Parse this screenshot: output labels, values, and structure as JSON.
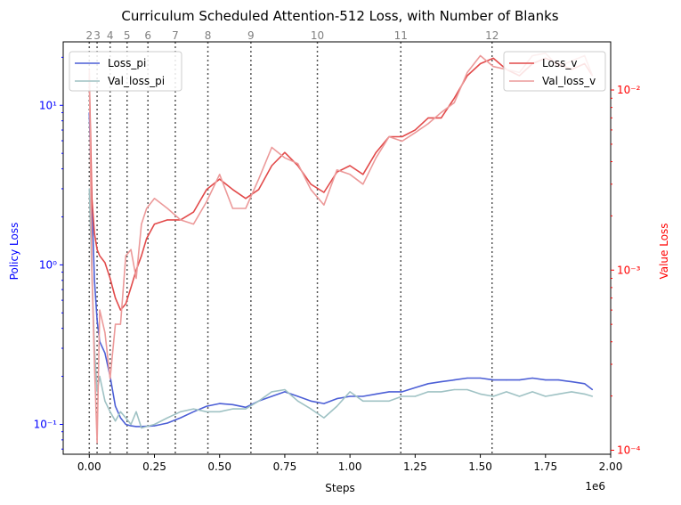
{
  "chart_data": {
    "type": "line",
    "title": "Curriculum Scheduled Attention-512 Loss, with Number of Blanks",
    "xlabel": "Steps",
    "x_offset_label": "1e6",
    "ylabel_left": "Policy Loss",
    "ylabel_right": "Value Loss",
    "xlim": [
      -0.1,
      2.0
    ],
    "ylim_left": [
      0.065,
      25
    ],
    "ylim_right": [
      9.5e-05,
      0.0185
    ],
    "yscale_left": "log",
    "yscale_right": "log",
    "x_ticks": [
      0.0,
      0.25,
      0.5,
      0.75,
      1.0,
      1.25,
      1.5,
      1.75,
      2.0
    ],
    "x_tick_labels": [
      "0.00",
      "0.25",
      "0.50",
      "0.75",
      "1.00",
      "1.25",
      "1.50",
      "1.75",
      "2.00"
    ],
    "left_ticks": [
      0.1,
      1,
      10
    ],
    "left_tick_labels": [
      "10⁻¹",
      "10⁰",
      "10¹"
    ],
    "right_ticks": [
      0.0001,
      0.001,
      0.01
    ],
    "right_tick_labels": [
      "10⁻⁴",
      "10⁻³",
      "10⁻²"
    ],
    "legend_left_position": "top-left",
    "legend_right_position": "top-right",
    "colors": {
      "left_axis": "#0000ff",
      "right_axis": "#ff0000",
      "loss_pi": "#4c5fd6",
      "val_loss_pi": "#9fc2c4",
      "loss_v": "#e24a4a",
      "val_loss_v": "#ec9a9a",
      "blank_lines": "#555555",
      "blank_labels": "#808080"
    },
    "blanks": [
      {
        "label": "2",
        "x": 0.0
      },
      {
        "label": "3",
        "x": 0.03
      },
      {
        "label": "4",
        "x": 0.08
      },
      {
        "label": "5",
        "x": 0.145
      },
      {
        "label": "6",
        "x": 0.225
      },
      {
        "label": "7",
        "x": 0.33
      },
      {
        "label": "8",
        "x": 0.455
      },
      {
        "label": "9",
        "x": 0.62
      },
      {
        "label": "10",
        "x": 0.875
      },
      {
        "label": "11",
        "x": 1.195
      },
      {
        "label": "12",
        "x": 1.545
      }
    ],
    "series_left": [
      {
        "name": "Loss_pi",
        "color": "#4c5fd6",
        "x": [
          0.0,
          0.01,
          0.02,
          0.03,
          0.04,
          0.06,
          0.08,
          0.1,
          0.12,
          0.14,
          0.16,
          0.18,
          0.2,
          0.25,
          0.3,
          0.35,
          0.4,
          0.45,
          0.5,
          0.55,
          0.6,
          0.65,
          0.7,
          0.75,
          0.8,
          0.85,
          0.9,
          0.95,
          1.0,
          1.05,
          1.1,
          1.15,
          1.2,
          1.25,
          1.3,
          1.35,
          1.4,
          1.45,
          1.5,
          1.55,
          1.6,
          1.65,
          1.7,
          1.75,
          1.8,
          1.85,
          1.9,
          1.93
        ],
        "y": [
          9.0,
          2.5,
          0.8,
          0.45,
          0.33,
          0.28,
          0.2,
          0.13,
          0.11,
          0.1,
          0.098,
          0.097,
          0.097,
          0.098,
          0.102,
          0.11,
          0.12,
          0.13,
          0.135,
          0.133,
          0.128,
          0.14,
          0.15,
          0.16,
          0.15,
          0.14,
          0.135,
          0.145,
          0.15,
          0.15,
          0.155,
          0.16,
          0.16,
          0.17,
          0.18,
          0.185,
          0.19,
          0.195,
          0.195,
          0.19,
          0.19,
          0.19,
          0.195,
          0.19,
          0.19,
          0.185,
          0.18,
          0.165
        ]
      },
      {
        "name": "Val_loss_pi",
        "color": "#9fc2c4",
        "x": [
          0.0,
          0.01,
          0.02,
          0.03,
          0.04,
          0.06,
          0.08,
          0.1,
          0.12,
          0.14,
          0.16,
          0.18,
          0.2,
          0.25,
          0.3,
          0.35,
          0.4,
          0.45,
          0.5,
          0.55,
          0.6,
          0.65,
          0.7,
          0.75,
          0.8,
          0.85,
          0.9,
          0.95,
          1.0,
          1.05,
          1.1,
          1.15,
          1.2,
          1.25,
          1.3,
          1.35,
          1.4,
          1.45,
          1.5,
          1.55,
          1.6,
          1.65,
          1.7,
          1.75,
          1.8,
          1.85,
          1.9,
          1.93
        ],
        "y": [
          3.0,
          0.9,
          0.3,
          0.16,
          0.2,
          0.14,
          0.12,
          0.105,
          0.12,
          0.11,
          0.1,
          0.12,
          0.095,
          0.1,
          0.11,
          0.12,
          0.125,
          0.12,
          0.12,
          0.125,
          0.125,
          0.14,
          0.16,
          0.165,
          0.14,
          0.125,
          0.11,
          0.13,
          0.16,
          0.14,
          0.14,
          0.14,
          0.15,
          0.15,
          0.16,
          0.16,
          0.165,
          0.165,
          0.155,
          0.15,
          0.16,
          0.15,
          0.16,
          0.15,
          0.155,
          0.16,
          0.155,
          0.15
        ]
      }
    ],
    "series_right": [
      {
        "name": "Loss_v",
        "color": "#e24a4a",
        "x": [
          0.0,
          0.01,
          0.02,
          0.03,
          0.04,
          0.06,
          0.08,
          0.1,
          0.12,
          0.14,
          0.16,
          0.18,
          0.2,
          0.22,
          0.25,
          0.3,
          0.35,
          0.4,
          0.45,
          0.5,
          0.55,
          0.6,
          0.65,
          0.7,
          0.75,
          0.8,
          0.85,
          0.9,
          0.95,
          1.0,
          1.05,
          1.1,
          1.15,
          1.2,
          1.25,
          1.3,
          1.35,
          1.4,
          1.45,
          1.5,
          1.55,
          1.6,
          1.65,
          1.7,
          1.75,
          1.8,
          1.85,
          1.9,
          1.93
        ],
        "y": [
          0.012,
          0.0025,
          0.0016,
          0.0013,
          0.0012,
          0.0011,
          0.0009,
          0.0007,
          0.0006,
          0.00065,
          0.0008,
          0.001,
          0.0012,
          0.0015,
          0.0018,
          0.0019,
          0.0019,
          0.0021,
          0.0028,
          0.0032,
          0.0028,
          0.0025,
          0.0028,
          0.0038,
          0.0045,
          0.0038,
          0.003,
          0.0027,
          0.0035,
          0.0038,
          0.0034,
          0.0045,
          0.0055,
          0.0055,
          0.006,
          0.007,
          0.007,
          0.009,
          0.012,
          0.014,
          0.015,
          0.013,
          0.012,
          0.014,
          0.015,
          0.014,
          0.013,
          0.014,
          0.012
        ]
      },
      {
        "name": "Val_loss_v",
        "color": "#ec9a9a",
        "x": [
          0.0,
          0.01,
          0.02,
          0.03,
          0.04,
          0.06,
          0.08,
          0.1,
          0.12,
          0.14,
          0.16,
          0.18,
          0.2,
          0.22,
          0.25,
          0.3,
          0.35,
          0.4,
          0.45,
          0.5,
          0.55,
          0.6,
          0.65,
          0.7,
          0.75,
          0.8,
          0.85,
          0.9,
          0.95,
          1.0,
          1.05,
          1.1,
          1.15,
          1.2,
          1.25,
          1.3,
          1.35,
          1.4,
          1.45,
          1.5,
          1.55,
          1.6,
          1.65,
          1.7,
          1.75,
          1.8,
          1.85,
          1.9,
          1.93
        ],
        "y": [
          0.013,
          0.001,
          0.0003,
          0.00011,
          0.0006,
          0.00045,
          0.00025,
          0.0005,
          0.0005,
          0.0012,
          0.0013,
          0.0009,
          0.0018,
          0.0022,
          0.0025,
          0.0022,
          0.0019,
          0.0018,
          0.0024,
          0.0034,
          0.0022,
          0.0022,
          0.0032,
          0.0048,
          0.0042,
          0.0039,
          0.0028,
          0.0023,
          0.0036,
          0.0034,
          0.003,
          0.0042,
          0.0055,
          0.0052,
          0.0058,
          0.0065,
          0.0075,
          0.0085,
          0.0125,
          0.0155,
          0.0135,
          0.013,
          0.0125,
          0.0155,
          0.016,
          0.0135,
          0.0145,
          0.0155,
          0.012
        ]
      }
    ]
  }
}
